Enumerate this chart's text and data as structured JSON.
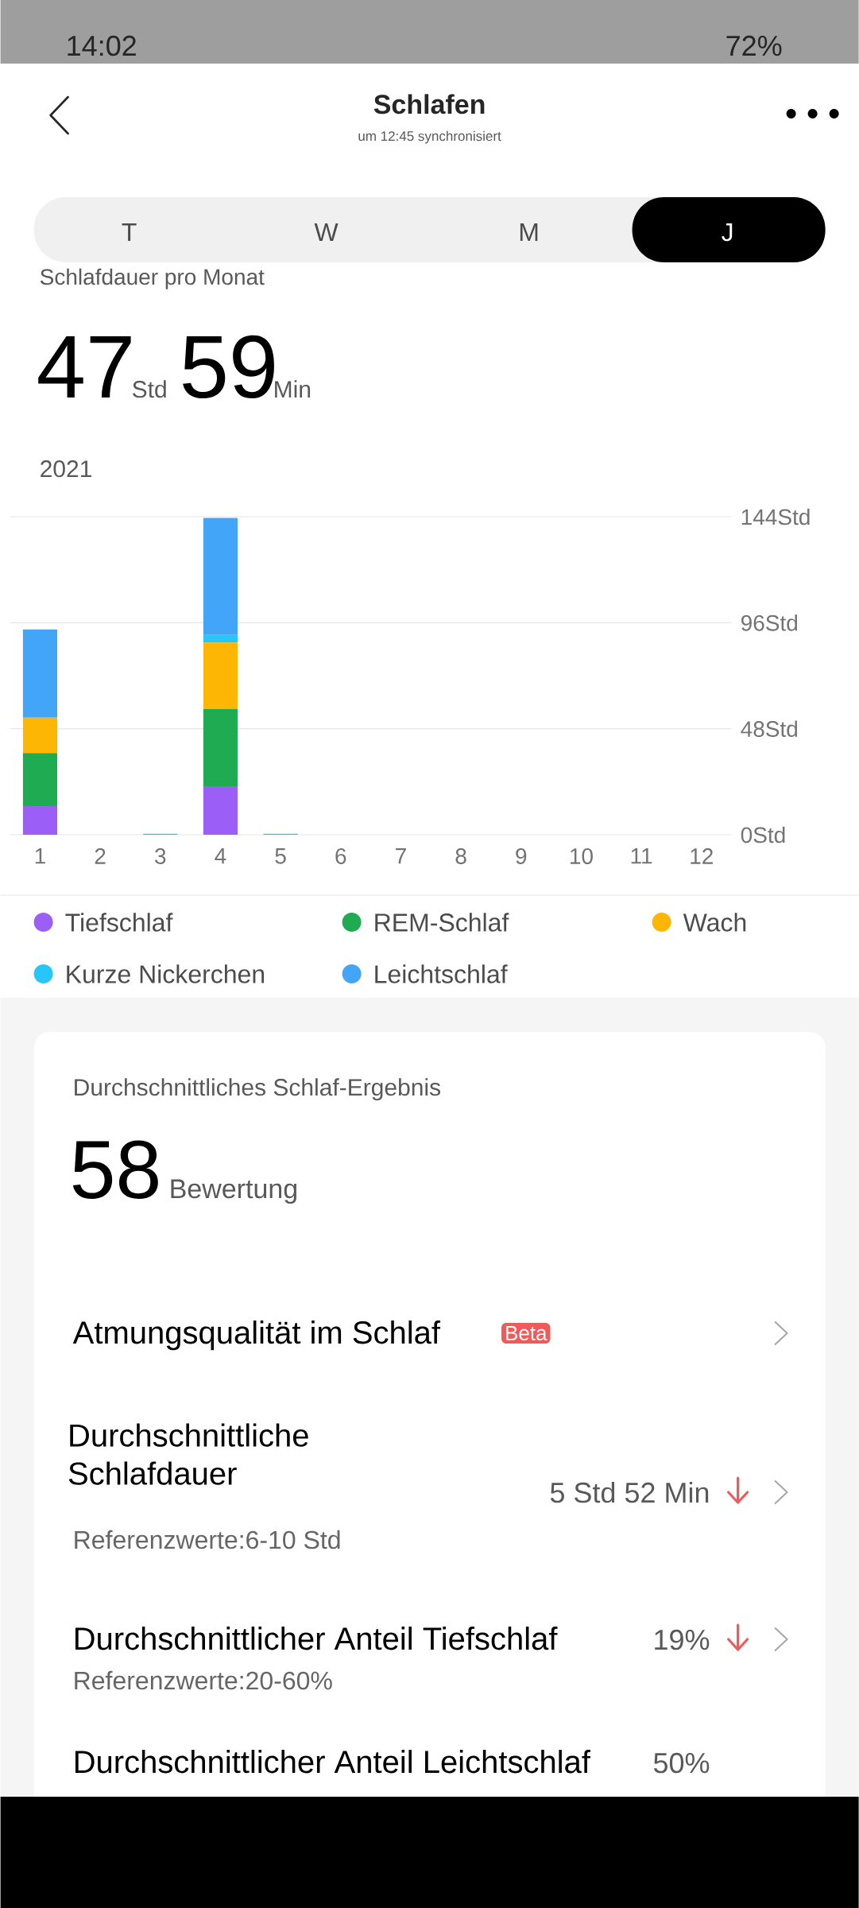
{
  "chart_data": {
    "type": "bar",
    "title": "Schlafen",
    "subtitle": "um 12:45 synchronisiert",
    "categories": [
      "1",
      "2",
      "3",
      "4",
      "5",
      "6",
      "7",
      "8",
      "9",
      "10",
      "11",
      "12"
    ],
    "stacked": true,
    "series": [
      {
        "name": "Tiefschlaf",
        "color": "#9b5ff8",
        "values": [
          13,
          0,
          0,
          22,
          0,
          0,
          0,
          0,
          0,
          0,
          0,
          0
        ]
      },
      {
        "name": "REM-Schlaf",
        "color": "#1fab52",
        "values": [
          24,
          0,
          0,
          35,
          0,
          0,
          0,
          0,
          0,
          0,
          0,
          0
        ]
      },
      {
        "name": "Wach",
        "color": "#fdb603",
        "values": [
          16,
          0,
          0,
          30,
          0,
          0,
          0,
          0,
          0,
          0,
          0,
          0
        ]
      },
      {
        "name": "Kurze Nickerchen",
        "color": "#26c6f8",
        "values": [
          0,
          0,
          0.5,
          3.5,
          0.5,
          0,
          0,
          0,
          0,
          0,
          0,
          0
        ]
      },
      {
        "name": "Leichtschlaf",
        "color": "#42a5f8",
        "values": [
          40,
          0,
          0,
          53,
          0,
          0,
          0,
          0,
          0,
          0,
          0,
          0
        ]
      }
    ],
    "ylim": [
      0,
      144
    ],
    "yticks": [
      {
        "value": 0,
        "label": "0Std"
      },
      {
        "value": 48,
        "label": "48Std"
      },
      {
        "value": 96,
        "label": "96Std"
      },
      {
        "value": 144,
        "label": "144Std"
      }
    ],
    "grid": "y",
    "legend": "bottom",
    "annotations": [
      "14:02",
      "72%",
      "T",
      "W",
      "M",
      "J",
      "Schlafdauer pro Monat",
      "47",
      "Std",
      "59",
      "Min",
      "2021",
      "Durchschnittliches Schlaf-Ergebnis",
      "58",
      "Bewertung",
      "Atmungsqualität im Schlaf",
      "Beta",
      "Durchschnittliche Schlafdauer",
      "5 Std 52 Min",
      "Referenzwerte:6-10 Std",
      "Durchschnittlicher Anteil Tiefschlaf",
      "19%",
      "Referenzwerte:20-60%",
      "Durchschnittlicher Anteil Leichtschlaf",
      "50%"
    ]
  }
}
